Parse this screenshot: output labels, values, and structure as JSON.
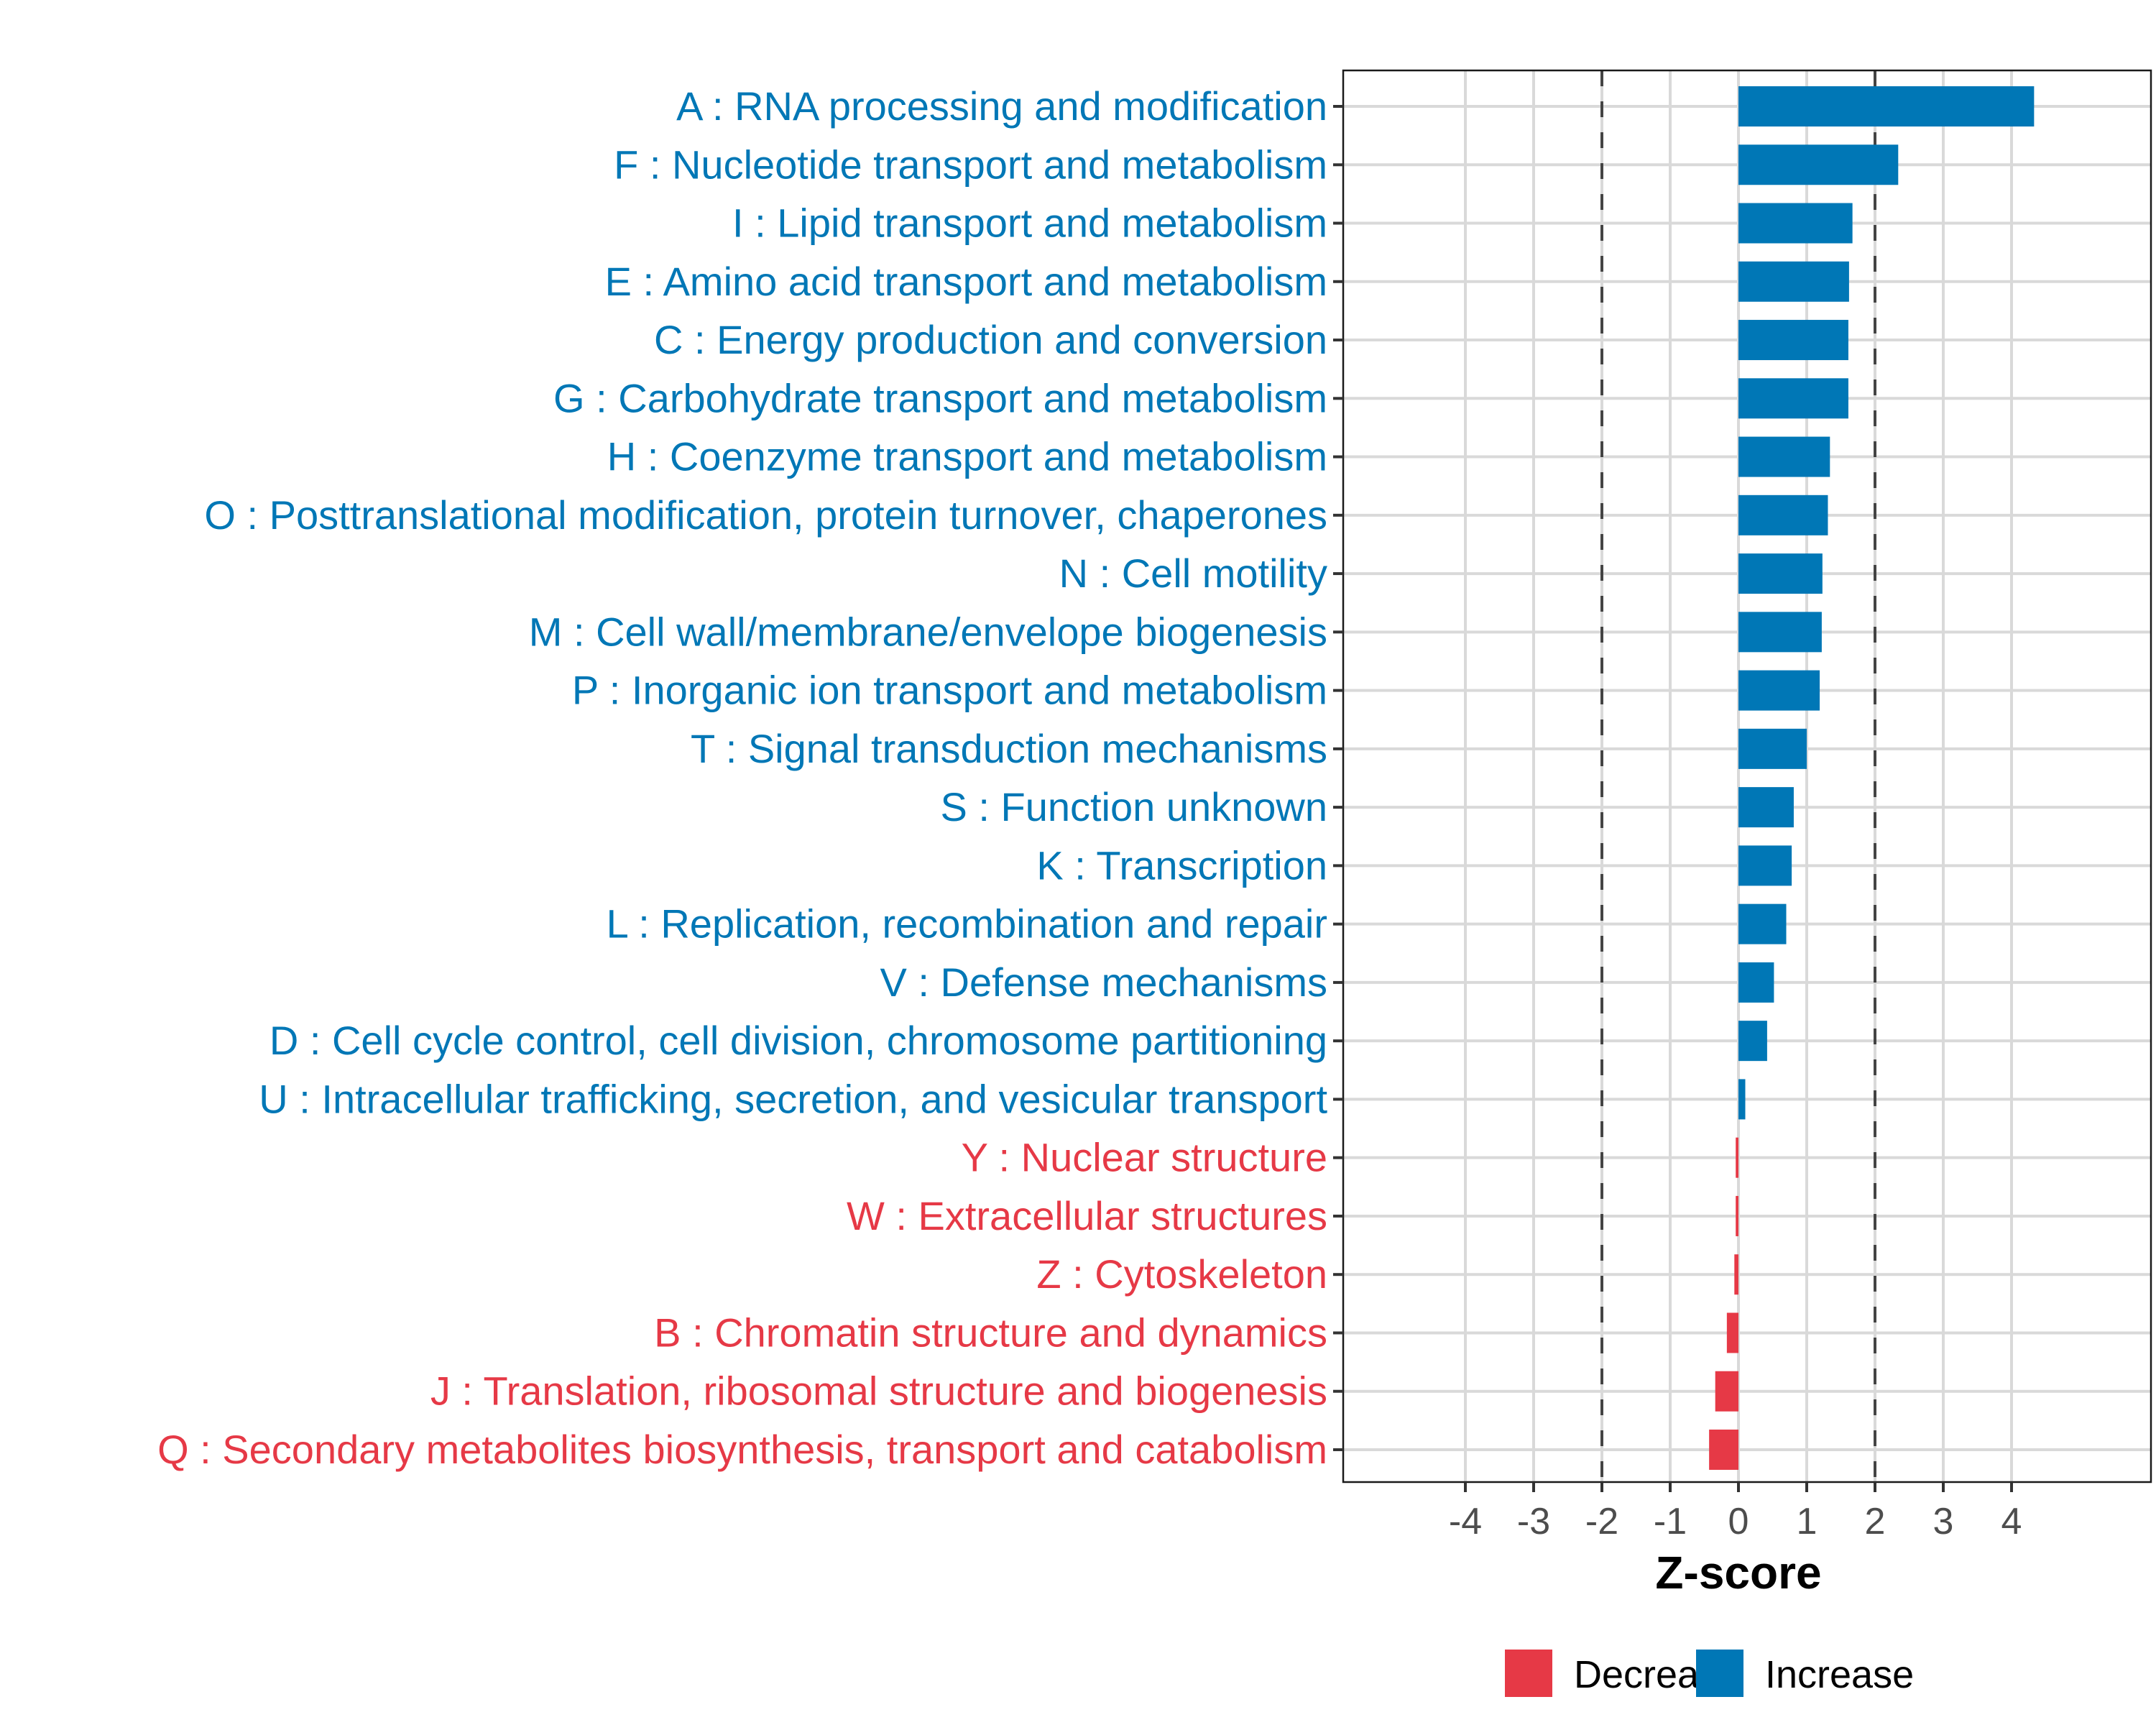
{
  "chart_data": {
    "type": "bar",
    "orientation": "horizontal",
    "title": "",
    "xlabel": "Z-score",
    "ylabel": "",
    "xlim": [
      -5.85,
      5.99
    ],
    "xticks": [
      -4,
      -3,
      -2,
      -1,
      0,
      1,
      2,
      3,
      4
    ],
    "xtick_labels": [
      "-4",
      "-3",
      "-2",
      "-1",
      "0",
      "1",
      "2",
      "3",
      "4"
    ],
    "reference_lines": [
      -2,
      2
    ],
    "grid": true,
    "legend_position": "bottom",
    "colors": {
      "Decrease": "#e63946",
      "Increase": "#0077b6"
    },
    "categories": [
      "A : RNA processing and modification",
      "F : Nucleotide transport and metabolism",
      "I : Lipid transport and metabolism",
      "E : Amino acid transport and metabolism",
      "C : Energy production and conversion",
      "G : Carbohydrate transport and metabolism",
      "H : Coenzyme transport and metabolism",
      "O : Posttranslational modification, protein turnover, chaperones",
      "N : Cell motility",
      "M : Cell wall/membrane/envelope biogenesis",
      "P : Inorganic ion transport and metabolism",
      "T : Signal transduction mechanisms",
      "S : Function unknown",
      "K : Transcription",
      "L : Replication, recombination and repair",
      "V : Defense mechanisms",
      "D : Cell cycle control, cell division, chromosome partitioning",
      "U : Intracellular trafficking, secretion, and vesicular transport",
      "Y : Nuclear structure",
      "W : Extracellular structures",
      "Z : Cytoskeleton",
      "B : Chromatin structure and dynamics",
      "J : Translation, ribosomal structure and biogenesis",
      "Q : Secondary metabolites biosynthesis, transport and catabolism"
    ],
    "values": [
      4.33,
      2.34,
      1.67,
      1.62,
      1.61,
      1.61,
      1.34,
      1.31,
      1.23,
      1.22,
      1.19,
      1.0,
      0.81,
      0.78,
      0.7,
      0.52,
      0.42,
      0.1,
      -0.04,
      -0.04,
      -0.06,
      -0.17,
      -0.34,
      -0.43
    ],
    "groups": [
      "Increase",
      "Increase",
      "Increase",
      "Increase",
      "Increase",
      "Increase",
      "Increase",
      "Increase",
      "Increase",
      "Increase",
      "Increase",
      "Increase",
      "Increase",
      "Increase",
      "Increase",
      "Increase",
      "Increase",
      "Increase",
      "Decrease",
      "Decrease",
      "Decrease",
      "Decrease",
      "Decrease",
      "Decrease"
    ],
    "legend": [
      {
        "label": "Decrease",
        "color": "#e63946"
      },
      {
        "label": "Increase",
        "color": "#0077b6"
      }
    ]
  }
}
